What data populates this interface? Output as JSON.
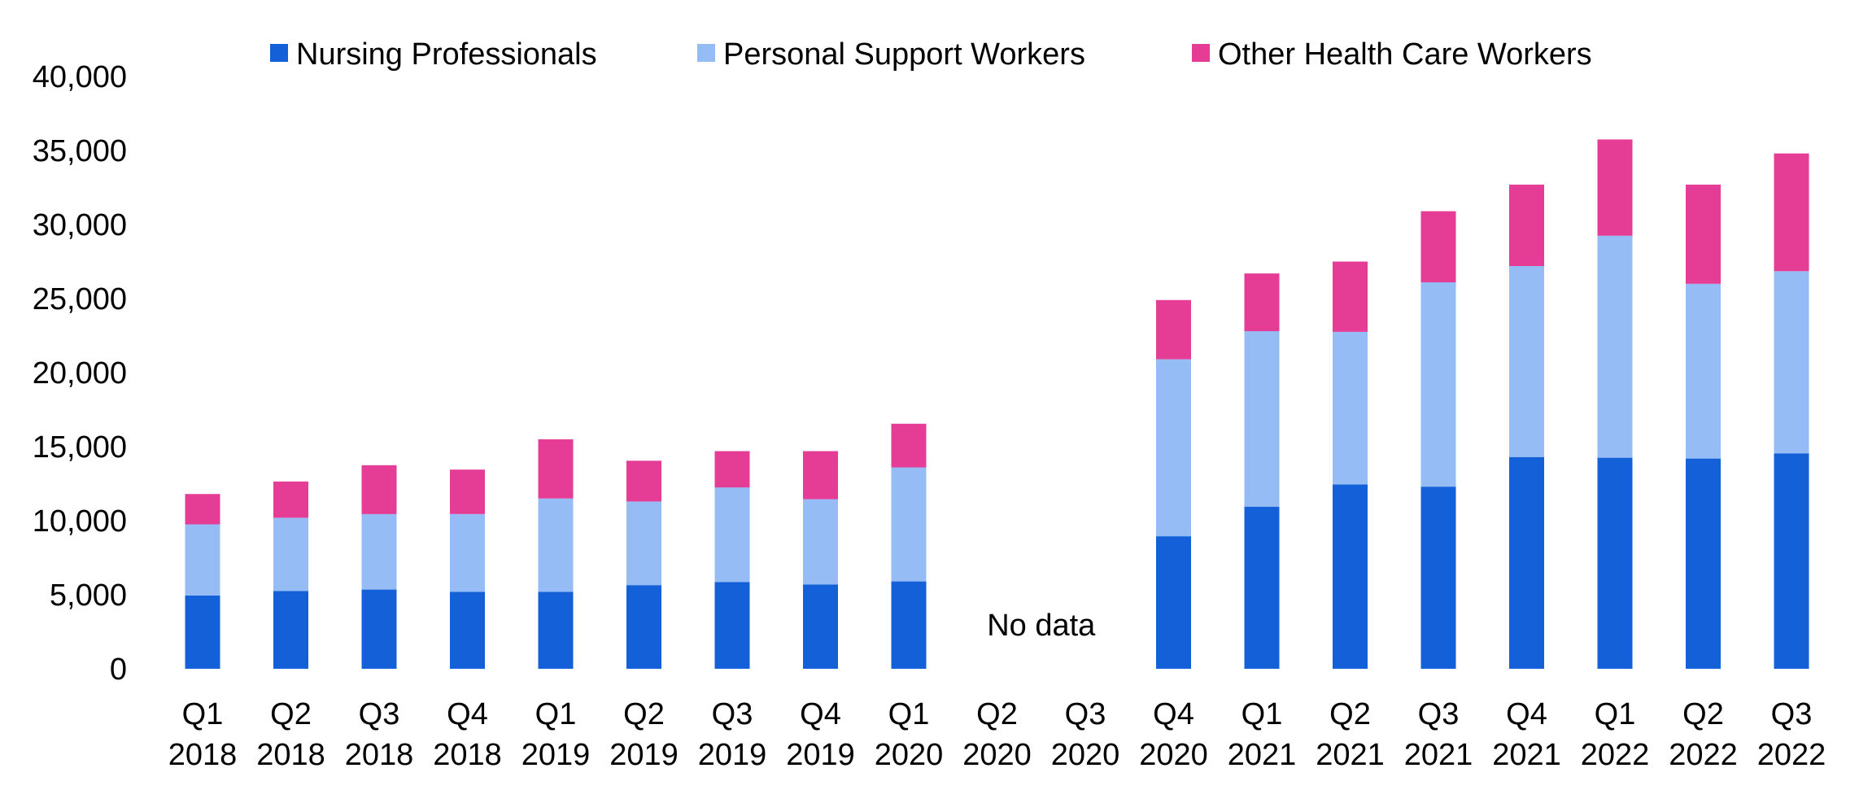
{
  "chart_data": {
    "type": "bar",
    "stacked": true,
    "categories": [
      [
        "Q1",
        "2018"
      ],
      [
        "Q2",
        "2018"
      ],
      [
        "Q3",
        "2018"
      ],
      [
        "Q4",
        "2018"
      ],
      [
        "Q1",
        "2019"
      ],
      [
        "Q2",
        "2019"
      ],
      [
        "Q3",
        "2019"
      ],
      [
        "Q4",
        "2019"
      ],
      [
        "Q1",
        "2020"
      ],
      [
        "Q2",
        "2020"
      ],
      [
        "Q3",
        "2020"
      ],
      [
        "Q4",
        "2020"
      ],
      [
        "Q1",
        "2021"
      ],
      [
        "Q2",
        "2021"
      ],
      [
        "Q3",
        "2021"
      ],
      [
        "Q4",
        "2021"
      ],
      [
        "Q1",
        "2022"
      ],
      [
        "Q2",
        "2022"
      ],
      [
        "Q3",
        "2022"
      ]
    ],
    "series": [
      {
        "name": "Nursing Professionals",
        "color": "#1360d8",
        "values": [
          4950,
          5250,
          5350,
          5200,
          5200,
          5650,
          5850,
          5700,
          5900,
          null,
          null,
          8950,
          10950,
          12450,
          12300,
          14300,
          14250,
          14200,
          14550
        ]
      },
      {
        "name": "Personal Support Workers",
        "color": "#96bcf6",
        "values": [
          4800,
          4950,
          5100,
          5250,
          6300,
          5650,
          6400,
          5750,
          7700,
          null,
          null,
          11950,
          11850,
          10300,
          13800,
          12900,
          15000,
          11800,
          12300
        ]
      },
      {
        "name": "Other Health Care Workers",
        "color": "#e53d95",
        "values": [
          2050,
          2450,
          3300,
          3000,
          4000,
          2750,
          2450,
          3250,
          2950,
          null,
          null,
          4000,
          3900,
          4750,
          4800,
          5500,
          6500,
          6700,
          7950
        ]
      }
    ],
    "yticks": [
      "0",
      "5,000",
      "10,000",
      "15,000",
      "20,000",
      "25,000",
      "30,000",
      "35,000",
      "40,000"
    ],
    "ylim": [
      0,
      40000
    ],
    "ytick_step": 5000,
    "annotations": [
      {
        "text": "No data",
        "near_categories": [
          9,
          10
        ]
      }
    ],
    "legend_position": "top",
    "grid": false
  }
}
